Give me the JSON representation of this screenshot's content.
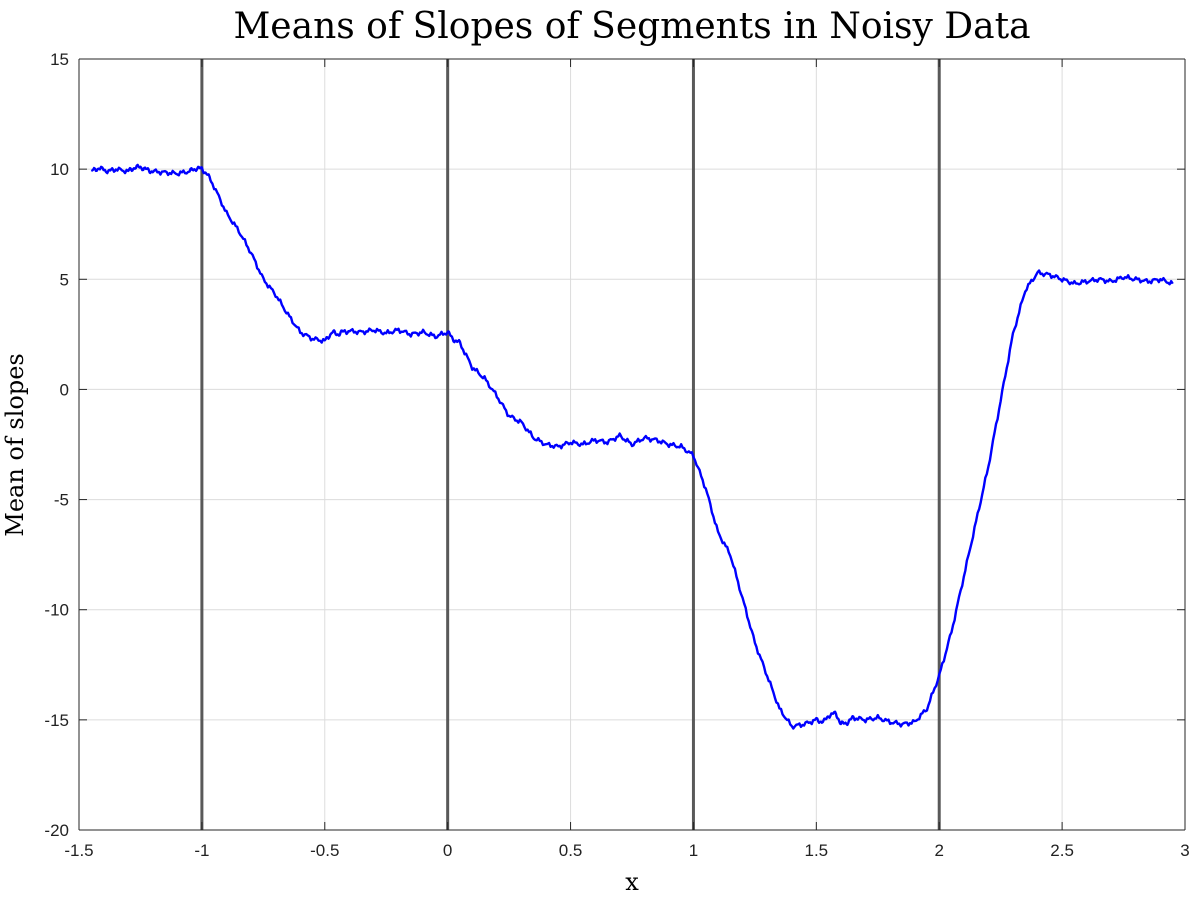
{
  "chart_data": {
    "type": "line",
    "title": "Means of Slopes of Segments in Noisy Data",
    "xlabel": "x",
    "ylabel": "Mean of slopes",
    "xlim": [
      -1.5,
      3
    ],
    "ylim": [
      -20,
      15
    ],
    "grid": true,
    "x_ticks": [
      -1.5,
      -1,
      -0.5,
      0,
      0.5,
      1,
      1.5,
      2,
      2.5,
      3
    ],
    "x_tick_labels": [
      "-1.5",
      "-1",
      "-0.5",
      "0",
      "0.5",
      "1",
      "1.5",
      "2",
      "2.5",
      "3"
    ],
    "y_ticks": [
      15,
      10,
      5,
      0,
      -5,
      -10,
      -15,
      -20
    ],
    "y_tick_labels": [
      "15",
      "10",
      "5",
      "0",
      "-5",
      "-10",
      "-15",
      "-20"
    ],
    "vertical_lines_x": [
      -1,
      0,
      1,
      2
    ],
    "vertical_line_color": "#595959",
    "series": [
      {
        "color": "#0000ff",
        "x": [
          -1.45,
          -1.42,
          -1.38,
          -1.35,
          -1.3,
          -1.28,
          -1.25,
          -1.22,
          -1.2,
          -1.15,
          -1.1,
          -1.05,
          -1.02,
          -1.0,
          -0.98,
          -0.95,
          -0.9,
          -0.85,
          -0.8,
          -0.75,
          -0.7,
          -0.65,
          -0.6,
          -0.55,
          -0.5,
          -0.47,
          -0.45,
          -0.43,
          -0.4,
          -0.35,
          -0.3,
          -0.25,
          -0.2,
          -0.15,
          -0.1,
          -0.05,
          0.0,
          0.02,
          0.05,
          0.1,
          0.15,
          0.2,
          0.25,
          0.3,
          0.35,
          0.4,
          0.45,
          0.5,
          0.55,
          0.6,
          0.65,
          0.7,
          0.75,
          0.8,
          0.85,
          0.9,
          0.95,
          1.0,
          1.05,
          1.1,
          1.15,
          1.2,
          1.25,
          1.3,
          1.35,
          1.4,
          1.45,
          1.5,
          1.53,
          1.55,
          1.58,
          1.6,
          1.63,
          1.65,
          1.7,
          1.75,
          1.8,
          1.85,
          1.9,
          1.95,
          2.0,
          2.05,
          2.1,
          2.15,
          2.2,
          2.25,
          2.3,
          2.35,
          2.4,
          2.45,
          2.5,
          2.55,
          2.6,
          2.65,
          2.7,
          2.75,
          2.8,
          2.85,
          2.9,
          2.95
        ],
        "y": [
          9.9,
          10.05,
          9.9,
          10.0,
          9.9,
          10.05,
          10.1,
          9.95,
          9.9,
          9.85,
          9.8,
          9.9,
          10.05,
          10.0,
          9.8,
          9.2,
          8.0,
          7.2,
          6.2,
          5.0,
          4.3,
          3.4,
          2.6,
          2.3,
          2.2,
          2.6,
          2.5,
          2.6,
          2.65,
          2.6,
          2.7,
          2.55,
          2.7,
          2.5,
          2.6,
          2.4,
          2.6,
          2.3,
          2.1,
          1.0,
          0.5,
          -0.3,
          -1.2,
          -1.5,
          -2.2,
          -2.5,
          -2.6,
          -2.4,
          -2.5,
          -2.3,
          -2.4,
          -2.1,
          -2.5,
          -2.2,
          -2.3,
          -2.5,
          -2.6,
          -3.0,
          -4.5,
          -6.5,
          -7.5,
          -9.5,
          -11.5,
          -13.0,
          -14.5,
          -15.3,
          -15.2,
          -15.0,
          -15.1,
          -14.8,
          -14.7,
          -15.2,
          -15.1,
          -14.9,
          -15.0,
          -14.9,
          -15.1,
          -15.2,
          -15.1,
          -14.5,
          -13.0,
          -11.0,
          -8.5,
          -6.0,
          -3.5,
          -0.5,
          2.5,
          4.5,
          5.3,
          5.2,
          5.0,
          4.8,
          4.9,
          5.0,
          4.9,
          5.1,
          5.0,
          4.9,
          5.0,
          4.8
        ]
      }
    ]
  }
}
